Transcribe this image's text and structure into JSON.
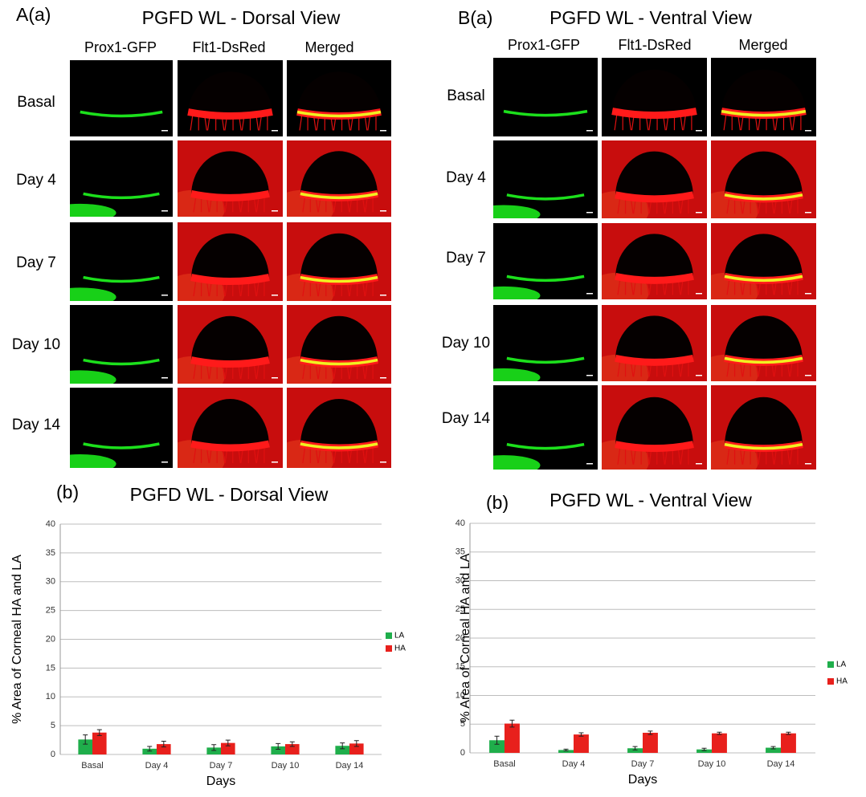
{
  "image_panels": [
    {
      "label": "A(a)",
      "title": "PGFD WL - Dorsal View",
      "columns": [
        "Prox1-GFP",
        "Flt1-DsRed",
        "Merged"
      ],
      "rows": [
        "Basal",
        "Day 4",
        "Day 7",
        "Day 10",
        "Day 14"
      ]
    },
    {
      "label": "B(a)",
      "title": "PGFD WL - Ventral View",
      "columns": [
        "Prox1-GFP",
        "Flt1-DsRed",
        "Merged"
      ],
      "rows": [
        "Basal",
        "Day 4",
        "Day 7",
        "Day 10",
        "Day 14"
      ]
    }
  ],
  "chart_data": [
    {
      "type": "bar",
      "label": "(b)",
      "title": "PGFD WL - Dorsal View",
      "xlabel": "Days",
      "ylabel": "% Area of Corneal HA and LA",
      "categories": [
        "Basal",
        "Day 4",
        "Day 7",
        "Day 10",
        "Day 14"
      ],
      "series": [
        {
          "name": "LA",
          "color": "#1fae4b",
          "values": [
            2.6,
            1.0,
            1.2,
            1.4,
            1.5
          ],
          "errors": [
            0.8,
            0.4,
            0.5,
            0.5,
            0.5
          ]
        },
        {
          "name": "HA",
          "color": "#e8201c",
          "values": [
            3.8,
            1.8,
            2.0,
            1.8,
            1.9
          ],
          "errors": [
            0.5,
            0.5,
            0.5,
            0.4,
            0.5
          ]
        }
      ],
      "ylim": [
        0,
        40
      ],
      "yticks": [
        0,
        5,
        10,
        15,
        20,
        25,
        30,
        35,
        40
      ],
      "grid": true,
      "legend": "right"
    },
    {
      "type": "bar",
      "label": "(b)",
      "title": "PGFD WL - Ventral View",
      "xlabel": "Days",
      "ylabel": "% Area of Corneal HA and LA",
      "categories": [
        "Basal",
        "Day 4",
        "Day 7",
        "Day 10",
        "Day 14"
      ],
      "series": [
        {
          "name": "LA",
          "color": "#1fae4b",
          "values": [
            2.2,
            0.5,
            0.8,
            0.6,
            0.9
          ],
          "errors": [
            0.7,
            0.15,
            0.3,
            0.2,
            0.2
          ]
        },
        {
          "name": "HA",
          "color": "#e8201c",
          "values": [
            5.1,
            3.2,
            3.5,
            3.4,
            3.4
          ],
          "errors": [
            0.6,
            0.3,
            0.3,
            0.2,
            0.2
          ]
        }
      ],
      "ylim": [
        0,
        40
      ],
      "yticks": [
        0,
        5,
        10,
        15,
        20,
        25,
        30,
        35,
        40
      ],
      "grid": true,
      "legend": "right"
    }
  ]
}
